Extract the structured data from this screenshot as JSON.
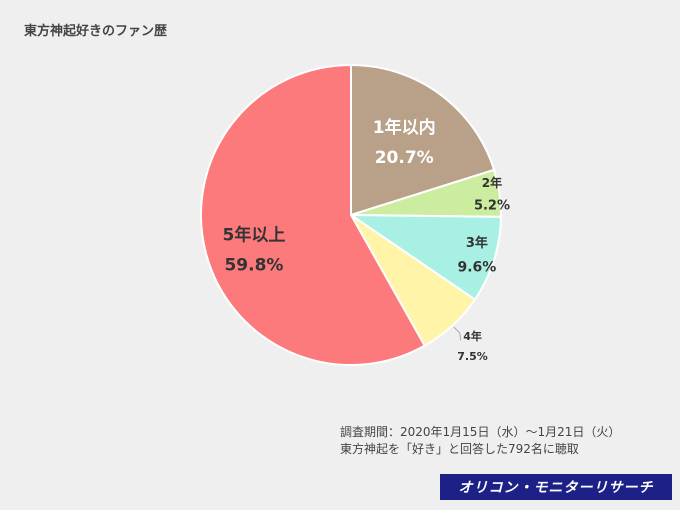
{
  "chart_data": {
    "type": "pie",
    "title": "東方神起好きのファン歴",
    "start_angle_deg": 0,
    "direction": "clockwise",
    "slices": [
      {
        "label": "1年以内",
        "value": 20.7,
        "value_text": "20.7%",
        "color": "#b9a088",
        "label_color": "#ffffff",
        "label_style": "inside-large"
      },
      {
        "label": "2年",
        "value": 5.2,
        "value_text": "5.2%",
        "color": "#ccec9f",
        "label_color": "#333333",
        "label_style": "inside-small"
      },
      {
        "label": "3年",
        "value": 9.6,
        "value_text": "9.6%",
        "color": "#a9f0e4",
        "label_color": "#333333",
        "label_style": "inside-medium"
      },
      {
        "label": "4年",
        "value": 7.5,
        "value_text": "7.5%",
        "color": "#fff4a8",
        "label_color": "#333333",
        "label_style": "outside"
      },
      {
        "label": "5年以上",
        "value": 59.8,
        "value_text": "59.8%",
        "color": "#fd7a7c",
        "label_color": "#333333",
        "label_style": "inside-large"
      }
    ]
  },
  "footnote": {
    "line1": "調査期間：2020年1月15日（水）～1月21日（火）",
    "line2": "東方神起を「好き」と回答した792名に聴取"
  },
  "brand": {
    "label": "オリコン・モニターリサーチ",
    "color": "#1d2087"
  }
}
